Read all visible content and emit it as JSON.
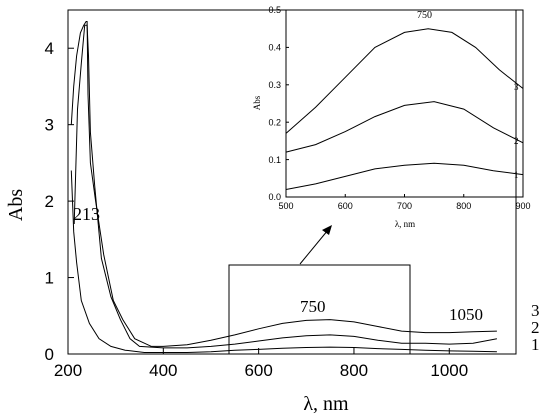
{
  "chart_data": [
    {
      "type": "line",
      "title": "",
      "xlabel": "λ, nm",
      "ylabel": "Abs",
      "xlim": [
        200,
        1140
      ],
      "ylim": [
        0,
        4.5
      ],
      "x_ticks": [
        200,
        400,
        600,
        800,
        1000
      ],
      "y_ticks": [
        0,
        1,
        2,
        3,
        4
      ],
      "grid": false,
      "series": [
        {
          "name": "1",
          "points": [
            [
              207,
              2.4
            ],
            [
              212,
              1.6
            ],
            [
              218,
              1.2
            ],
            [
              228,
              0.7
            ],
            [
              245,
              0.4
            ],
            [
              265,
              0.2
            ],
            [
              290,
              0.1
            ],
            [
              320,
              0.05
            ],
            [
              360,
              0.02
            ],
            [
              400,
              0.02
            ],
            [
              450,
              0.02
            ],
            [
              500,
              0.03
            ],
            [
              550,
              0.05
            ],
            [
              600,
              0.06
            ],
            [
              650,
              0.075
            ],
            [
              700,
              0.085
            ],
            [
              750,
              0.09
            ],
            [
              800,
              0.085
            ],
            [
              850,
              0.07
            ],
            [
              900,
              0.06
            ],
            [
              950,
              0.05
            ],
            [
              1000,
              0.04
            ],
            [
              1050,
              0.035
            ],
            [
              1100,
              0.03
            ]
          ]
        },
        {
          "name": "2",
          "points": [
            [
              213,
              1.7
            ],
            [
              220,
              3.2
            ],
            [
              228,
              3.8
            ],
            [
              235,
              4.3
            ],
            [
              240,
              4.3
            ],
            [
              243,
              3.9
            ],
            [
              247,
              2.9
            ],
            [
              256,
              2.2
            ],
            [
              270,
              1.25
            ],
            [
              290,
              0.75
            ],
            [
              310,
              0.45
            ],
            [
              330,
              0.2
            ],
            [
              350,
              0.1
            ],
            [
              400,
              0.08
            ],
            [
              450,
              0.08
            ],
            [
              500,
              0.1
            ],
            [
              550,
              0.13
            ],
            [
              600,
              0.17
            ],
            [
              650,
              0.21
            ],
            [
              700,
              0.24
            ],
            [
              750,
              0.25
            ],
            [
              800,
              0.23
            ],
            [
              850,
              0.18
            ],
            [
              900,
              0.14
            ],
            [
              950,
              0.14
            ],
            [
              1000,
              0.13
            ],
            [
              1050,
              0.14
            ],
            [
              1100,
              0.2
            ]
          ]
        },
        {
          "name": "3",
          "points": [
            [
              207,
              3.0
            ],
            [
              212,
              3.5
            ],
            [
              218,
              3.9
            ],
            [
              226,
              4.2
            ],
            [
              233,
              4.3
            ],
            [
              238,
              4.35
            ],
            [
              240,
              4.35
            ],
            [
              242,
              3.4
            ],
            [
              247,
              2.5
            ],
            [
              258,
              2.0
            ],
            [
              275,
              1.3
            ],
            [
              295,
              0.7
            ],
            [
              315,
              0.45
            ],
            [
              340,
              0.2
            ],
            [
              375,
              0.1
            ],
            [
              400,
              0.1
            ],
            [
              450,
              0.12
            ],
            [
              500,
              0.18
            ],
            [
              550,
              0.25
            ],
            [
              600,
              0.33
            ],
            [
              650,
              0.4
            ],
            [
              700,
              0.44
            ],
            [
              750,
              0.45
            ],
            [
              800,
              0.42
            ],
            [
              850,
              0.36
            ],
            [
              900,
              0.3
            ],
            [
              950,
              0.28
            ],
            [
              1000,
              0.28
            ],
            [
              1050,
              0.29
            ],
            [
              1100,
              0.3
            ]
          ]
        }
      ],
      "annotations": [
        "213",
        "750",
        "1050"
      ],
      "curve_labels": [
        "3",
        "2",
        "1"
      ]
    },
    {
      "type": "line",
      "title": "",
      "xlabel": "λ, nm",
      "ylabel": "Abs",
      "xlim": [
        500,
        900
      ],
      "ylim": [
        0,
        0.5
      ],
      "x_ticks": [
        500,
        600,
        700,
        800,
        900
      ],
      "y_ticks": [
        0.0,
        0.1,
        0.2,
        0.3,
        0.4,
        0.5
      ],
      "grid": false,
      "series": [
        {
          "name": "1",
          "points": [
            [
              500,
              0.02
            ],
            [
              550,
              0.035
            ],
            [
              600,
              0.055
            ],
            [
              650,
              0.075
            ],
            [
              700,
              0.085
            ],
            [
              750,
              0.09
            ],
            [
              800,
              0.085
            ],
            [
              850,
              0.07
            ],
            [
              900,
              0.06
            ]
          ]
        },
        {
          "name": "2",
          "points": [
            [
              500,
              0.12
            ],
            [
              550,
              0.14
            ],
            [
              600,
              0.175
            ],
            [
              650,
              0.215
            ],
            [
              700,
              0.245
            ],
            [
              750,
              0.255
            ],
            [
              800,
              0.235
            ],
            [
              850,
              0.185
            ],
            [
              900,
              0.145
            ]
          ]
        },
        {
          "name": "3",
          "points": [
            [
              500,
              0.17
            ],
            [
              550,
              0.24
            ],
            [
              600,
              0.32
            ],
            [
              650,
              0.4
            ],
            [
              700,
              0.44
            ],
            [
              740,
              0.45
            ],
            [
              780,
              0.44
            ],
            [
              820,
              0.4
            ],
            [
              860,
              0.34
            ],
            [
              900,
              0.29
            ]
          ]
        }
      ],
      "annotations": [
        "750"
      ],
      "curve_labels": [
        "3",
        "2",
        "1"
      ]
    }
  ]
}
